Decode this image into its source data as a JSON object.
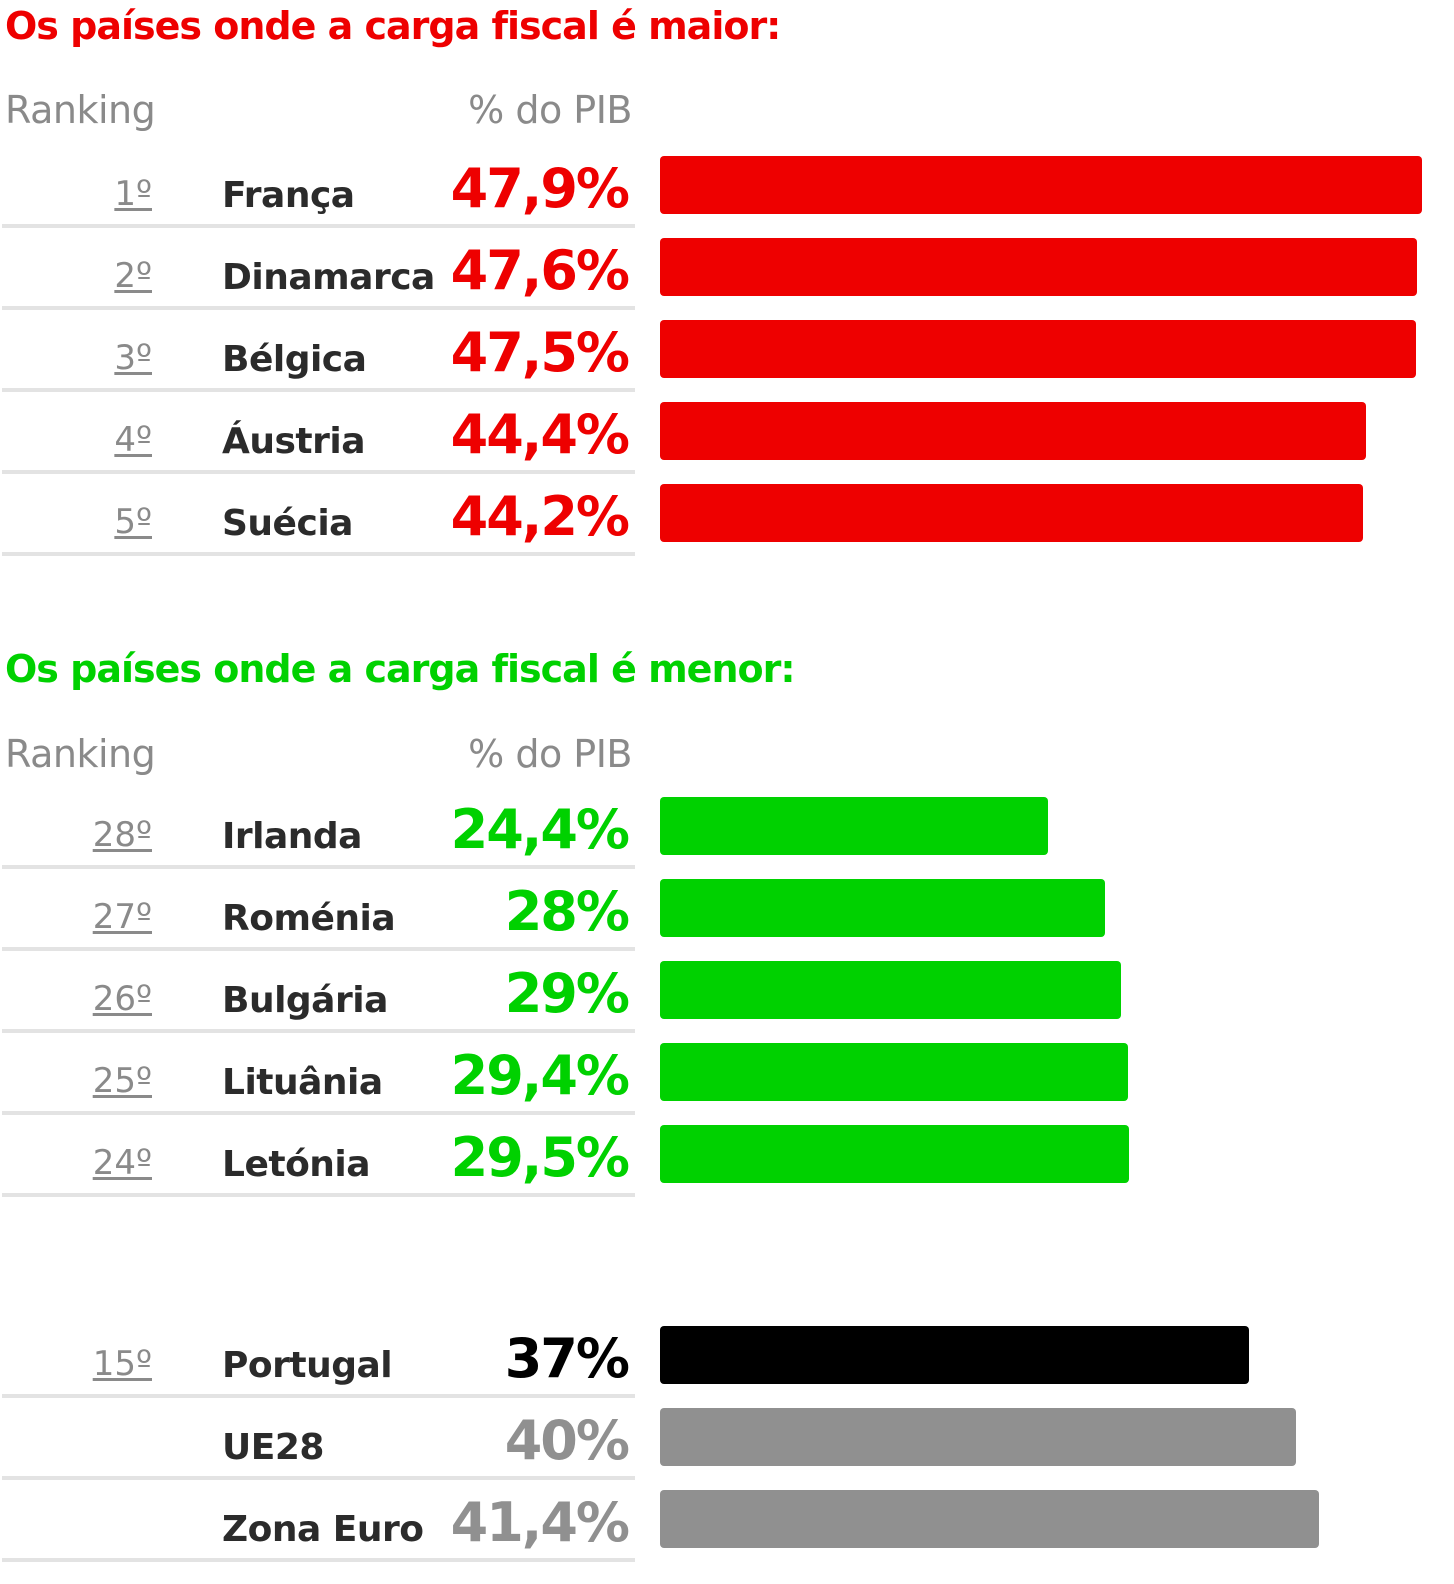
{
  "sections": {
    "top": {
      "title": "Os países onde a carga fiscal é maior:",
      "color": "#ee0000",
      "header": {
        "rank": "Ranking",
        "pct": "% do PIB"
      }
    },
    "bottom": {
      "title": "Os países onde a carga fiscal é menor:",
      "color": "#00d100",
      "header": {
        "rank": "Ranking",
        "pct": "% do PIB"
      }
    }
  },
  "colors": {
    "highest": "#ee0000",
    "lowest": "#00d100",
    "portugal": "#000000",
    "reference": "#909090"
  },
  "chart_data": {
    "type": "bar",
    "xlim": [
      0,
      47.9
    ],
    "groups": [
      {
        "name": "Os países onde a carga fiscal é maior:",
        "color": "#ee0000",
        "rows": [
          {
            "rank": "1º",
            "country": "França",
            "label": "47,9%",
            "value": 47.9
          },
          {
            "rank": "2º",
            "country": "Dinamarca",
            "label": "47,6%",
            "value": 47.6
          },
          {
            "rank": "3º",
            "country": "Bélgica",
            "label": "47,5%",
            "value": 47.5
          },
          {
            "rank": "4º",
            "country": "Áustria",
            "label": "44,4%",
            "value": 44.4
          },
          {
            "rank": "5º",
            "country": "Suécia",
            "label": "44,2%",
            "value": 44.2
          }
        ]
      },
      {
        "name": "Os países onde a carga fiscal é menor:",
        "color": "#00d100",
        "rows": [
          {
            "rank": "28º",
            "country": "Irlanda",
            "label": "24,4%",
            "value": 24.4
          },
          {
            "rank": "27º",
            "country": "Roménia",
            "label": "28%",
            "value": 28
          },
          {
            "rank": "26º",
            "country": "Bulgária",
            "label": "29%",
            "value": 29
          },
          {
            "rank": "25º",
            "country": "Lituânia",
            "label": "29,4%",
            "value": 29.4
          },
          {
            "rank": "24º",
            "country": "Letónia",
            "label": "29,5%",
            "value": 29.5
          }
        ]
      },
      {
        "name": "",
        "color": "#909090",
        "rows": [
          {
            "rank": "15º",
            "country": "Portugal",
            "label": "37%",
            "value": 37,
            "color": "#000000"
          },
          {
            "rank": "",
            "country": "UE28",
            "label": "40%",
            "value": 40,
            "color": "#909090"
          },
          {
            "rank": "",
            "country": "Zona Euro",
            "label": "41,4%",
            "value": 41.4,
            "color": "#909090"
          }
        ]
      }
    ]
  }
}
